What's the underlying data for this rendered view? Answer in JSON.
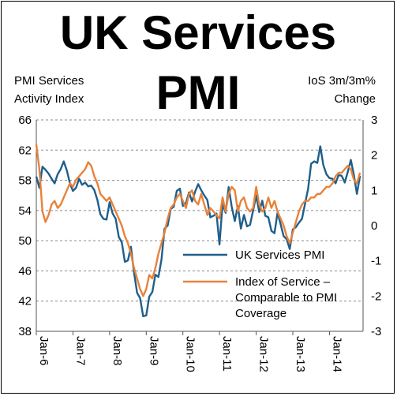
{
  "chart_data": {
    "type": "line",
    "title_line1": "UK Services",
    "title_line2": "PMI",
    "left_axis_label_line1": "PMI Services",
    "left_axis_label_line2": "Activity Index",
    "right_axis_label_line1": "IoS 3m/3m%",
    "right_axis_label_line2": "Change",
    "y_left": {
      "min": 38,
      "max": 66,
      "ticks": [
        38,
        42,
        46,
        50,
        54,
        58,
        62,
        66
      ]
    },
    "y_right": {
      "min": -3,
      "max": 3,
      "ticks": [
        -3,
        -2,
        -1,
        0,
        1,
        2,
        3
      ]
    },
    "x_ticks": [
      "Jan-6",
      "Jan-7",
      "Jan-8",
      "Jan-9",
      "Jan-10",
      "Jan-11",
      "Jan-12",
      "Jan-13",
      "Jan-14"
    ],
    "x_range": [
      2006.0,
      2014.917
    ],
    "grid": "horizontal-dashed",
    "legend_placement": "bottom-right",
    "series": [
      {
        "name": "UK Services PMI",
        "color": "#1f5f8b",
        "axis": "left",
        "points": [
          [
            2006.0,
            58.5
          ],
          [
            2006.083,
            57.0
          ],
          [
            2006.167,
            59.8
          ],
          [
            2006.25,
            59.4
          ],
          [
            2006.333,
            58.9
          ],
          [
            2006.417,
            58.2
          ],
          [
            2006.5,
            57.6
          ],
          [
            2006.583,
            58.8
          ],
          [
            2006.667,
            59.5
          ],
          [
            2006.75,
            60.5
          ],
          [
            2006.833,
            59.3
          ],
          [
            2006.917,
            57.6
          ],
          [
            2007.0,
            56.6
          ],
          [
            2007.083,
            57.0
          ],
          [
            2007.167,
            58.2
          ],
          [
            2007.25,
            57.4
          ],
          [
            2007.333,
            57.7
          ],
          [
            2007.417,
            57.2
          ],
          [
            2007.5,
            57.3
          ],
          [
            2007.583,
            56.7
          ],
          [
            2007.667,
            55.4
          ],
          [
            2007.75,
            53.5
          ],
          [
            2007.833,
            52.9
          ],
          [
            2007.917,
            52.8
          ],
          [
            2008.0,
            55.1
          ],
          [
            2008.083,
            53.6
          ],
          [
            2008.167,
            52.9
          ],
          [
            2008.25,
            50.5
          ],
          [
            2008.333,
            49.8
          ],
          [
            2008.417,
            47.2
          ],
          [
            2008.5,
            47.4
          ],
          [
            2008.583,
            49.2
          ],
          [
            2008.667,
            45.8
          ],
          [
            2008.75,
            43.1
          ],
          [
            2008.833,
            42.4
          ],
          [
            2008.917,
            40.0
          ],
          [
            2009.0,
            40.1
          ],
          [
            2009.083,
            42.6
          ],
          [
            2009.167,
            43.2
          ],
          [
            2009.25,
            45.5
          ],
          [
            2009.333,
            45.2
          ],
          [
            2009.417,
            47.5
          ],
          [
            2009.5,
            51.6
          ],
          [
            2009.583,
            52.0
          ],
          [
            2009.667,
            54.2
          ],
          [
            2009.75,
            54.5
          ],
          [
            2009.833,
            56.6
          ],
          [
            2009.917,
            56.9
          ],
          [
            2010.0,
            54.6
          ],
          [
            2010.083,
            55.0
          ],
          [
            2010.167,
            56.4
          ],
          [
            2010.25,
            55.2
          ],
          [
            2010.333,
            56.5
          ],
          [
            2010.417,
            57.5
          ],
          [
            2010.5,
            56.7
          ],
          [
            2010.583,
            56.0
          ],
          [
            2010.667,
            55.4
          ],
          [
            2010.75,
            53.1
          ],
          [
            2010.833,
            53.3
          ],
          [
            2010.917,
            53.6
          ],
          [
            2011.0,
            49.5
          ],
          [
            2011.083,
            54.9
          ],
          [
            2011.167,
            53.7
          ],
          [
            2011.25,
            57.1
          ],
          [
            2011.333,
            54.5
          ],
          [
            2011.417,
            52.6
          ],
          [
            2011.5,
            54.6
          ],
          [
            2011.583,
            51.6
          ],
          [
            2011.667,
            53.4
          ],
          [
            2011.75,
            51.9
          ],
          [
            2011.833,
            52.1
          ],
          [
            2011.917,
            54.0
          ],
          [
            2012.0,
            56.0
          ],
          [
            2012.083,
            53.8
          ],
          [
            2012.167,
            55.3
          ],
          [
            2012.25,
            53.3
          ],
          [
            2012.333,
            53.1
          ],
          [
            2012.417,
            51.3
          ],
          [
            2012.5,
            51.0
          ],
          [
            2012.583,
            53.7
          ],
          [
            2012.667,
            52.2
          ],
          [
            2012.75,
            50.6
          ],
          [
            2012.833,
            50.2
          ],
          [
            2012.917,
            48.9
          ],
          [
            2013.0,
            51.5
          ],
          [
            2013.083,
            51.8
          ],
          [
            2013.167,
            52.4
          ],
          [
            2013.25,
            52.9
          ],
          [
            2013.333,
            54.9
          ],
          [
            2013.417,
            56.9
          ],
          [
            2013.5,
            60.2
          ],
          [
            2013.583,
            60.5
          ],
          [
            2013.667,
            60.3
          ],
          [
            2013.75,
            62.5
          ],
          [
            2013.833,
            60.0
          ],
          [
            2013.917,
            58.8
          ],
          [
            2014.0,
            58.3
          ],
          [
            2014.083,
            58.2
          ],
          [
            2014.167,
            57.6
          ],
          [
            2014.25,
            58.7
          ],
          [
            2014.333,
            58.6
          ],
          [
            2014.417,
            57.7
          ],
          [
            2014.5,
            59.1
          ],
          [
            2014.583,
            60.7
          ],
          [
            2014.667,
            58.7
          ],
          [
            2014.75,
            56.2
          ],
          [
            2014.833,
            58.6
          ]
        ]
      },
      {
        "name": "Index of Service – Comparable to PMI Coverage",
        "color": "#e8823a",
        "axis": "right",
        "points": [
          [
            2006.0,
            2.3
          ],
          [
            2006.083,
            1.6
          ],
          [
            2006.167,
            0.4
          ],
          [
            2006.25,
            0.1
          ],
          [
            2006.333,
            0.3
          ],
          [
            2006.417,
            0.6
          ],
          [
            2006.5,
            0.7
          ],
          [
            2006.583,
            0.5
          ],
          [
            2006.667,
            0.6
          ],
          [
            2006.75,
            0.8
          ],
          [
            2006.833,
            1.0
          ],
          [
            2006.917,
            1.2
          ],
          [
            2007.0,
            1.1
          ],
          [
            2007.083,
            1.3
          ],
          [
            2007.167,
            1.4
          ],
          [
            2007.25,
            1.5
          ],
          [
            2007.333,
            1.6
          ],
          [
            2007.417,
            1.8
          ],
          [
            2007.5,
            1.7
          ],
          [
            2007.583,
            1.4
          ],
          [
            2007.667,
            1.2
          ],
          [
            2007.75,
            0.9
          ],
          [
            2007.833,
            0.8
          ],
          [
            2007.917,
            0.7
          ],
          [
            2008.0,
            0.8
          ],
          [
            2008.083,
            0.6
          ],
          [
            2008.167,
            0.4
          ],
          [
            2008.25,
            0.2
          ],
          [
            2008.333,
            0.0
          ],
          [
            2008.417,
            -0.3
          ],
          [
            2008.5,
            -0.5
          ],
          [
            2008.583,
            -0.8
          ],
          [
            2008.667,
            -1.2
          ],
          [
            2008.75,
            -1.5
          ],
          [
            2008.833,
            -1.8
          ],
          [
            2008.917,
            -2.0
          ],
          [
            2009.0,
            -1.8
          ],
          [
            2009.083,
            -1.4
          ],
          [
            2009.167,
            -1.5
          ],
          [
            2009.25,
            -1.2
          ],
          [
            2009.333,
            -0.8
          ],
          [
            2009.417,
            -0.5
          ],
          [
            2009.5,
            -0.2
          ],
          [
            2009.583,
            0.2
          ],
          [
            2009.667,
            0.5
          ],
          [
            2009.75,
            0.6
          ],
          [
            2009.833,
            0.8
          ],
          [
            2009.917,
            0.9
          ],
          [
            2010.0,
            0.7
          ],
          [
            2010.083,
            0.5
          ],
          [
            2010.167,
            0.9
          ],
          [
            2010.25,
            1.0
          ],
          [
            2010.333,
            0.7
          ],
          [
            2010.417,
            0.6
          ],
          [
            2010.5,
            0.9
          ],
          [
            2010.583,
            0.6
          ],
          [
            2010.667,
            0.3
          ],
          [
            2010.75,
            0.5
          ],
          [
            2010.833,
            0.4
          ],
          [
            2010.917,
            0.3
          ],
          [
            2011.0,
            0.2
          ],
          [
            2011.083,
            0.8
          ],
          [
            2011.167,
            0.4
          ],
          [
            2011.25,
            0.9
          ],
          [
            2011.333,
            1.1
          ],
          [
            2011.417,
            1.0
          ],
          [
            2011.5,
            0.4
          ],
          [
            2011.583,
            0.7
          ],
          [
            2011.667,
            0.8
          ],
          [
            2011.75,
            0.5
          ],
          [
            2011.833,
            0.4
          ],
          [
            2011.917,
            0.5
          ],
          [
            2012.0,
            1.1
          ],
          [
            2012.083,
            0.6
          ],
          [
            2012.167,
            0.4
          ],
          [
            2012.25,
            0.5
          ],
          [
            2012.333,
            0.8
          ],
          [
            2012.417,
            0.5
          ],
          [
            2012.5,
            0.7
          ],
          [
            2012.583,
            0.4
          ],
          [
            2012.667,
            0.2
          ],
          [
            2012.75,
            0.0
          ],
          [
            2012.833,
            -0.3
          ],
          [
            2012.917,
            -0.5
          ],
          [
            2013.0,
            -0.2
          ],
          [
            2013.083,
            0.1
          ],
          [
            2013.167,
            0.4
          ],
          [
            2013.25,
            0.6
          ],
          [
            2013.333,
            0.7
          ],
          [
            2013.417,
            0.7
          ],
          [
            2013.5,
            0.8
          ],
          [
            2013.583,
            0.8
          ],
          [
            2013.667,
            0.9
          ],
          [
            2013.75,
            0.9
          ],
          [
            2013.833,
            1.0
          ],
          [
            2013.917,
            1.1
          ],
          [
            2014.0,
            1.1
          ],
          [
            2014.083,
            1.2
          ],
          [
            2014.167,
            1.4
          ],
          [
            2014.25,
            1.5
          ],
          [
            2014.333,
            1.5
          ],
          [
            2014.417,
            1.6
          ],
          [
            2014.5,
            1.7
          ],
          [
            2014.583,
            1.6
          ],
          [
            2014.667,
            1.3
          ],
          [
            2014.75,
            1.2
          ],
          [
            2014.833,
            1.5
          ]
        ]
      }
    ],
    "legend": [
      {
        "series": 0,
        "lines": [
          "UK Services PMI"
        ]
      },
      {
        "series": 1,
        "lines": [
          "Index of Service –",
          "Comparable to PMI",
          "Coverage"
        ]
      }
    ]
  }
}
